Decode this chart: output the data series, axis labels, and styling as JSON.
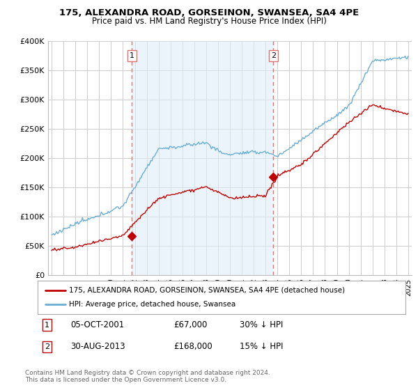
{
  "title": "175, ALEXANDRA ROAD, GORSEINON, SWANSEA, SA4 4PE",
  "subtitle": "Price paid vs. HM Land Registry's House Price Index (HPI)",
  "hpi_color": "#6aaed6",
  "hpi_fill_color": "#ddeeff",
  "property_color": "#c00000",
  "vline_color": "#e07070",
  "marker_color": "#c00000",
  "background_color": "#ffffff",
  "grid_color": "#cccccc",
  "ylim": [
    0,
    400000
  ],
  "yticks": [
    0,
    50000,
    100000,
    150000,
    200000,
    250000,
    300000,
    350000,
    400000
  ],
  "ytick_labels": [
    "£0",
    "£50K",
    "£100K",
    "£150K",
    "£200K",
    "£250K",
    "£300K",
    "£350K",
    "£400K"
  ],
  "sale1_date_num": 2001.76,
  "sale1_price": 67000,
  "sale2_date_num": 2013.66,
  "sale2_price": 168000,
  "legend_property": "175, ALEXANDRA ROAD, GORSEINON, SWANSEA, SA4 4PE (detached house)",
  "legend_hpi": "HPI: Average price, detached house, Swansea",
  "footnote": "Contains HM Land Registry data © Crown copyright and database right 2024.\nThis data is licensed under the Open Government Licence v3.0.",
  "xmin": 1994.7,
  "xmax": 2025.3
}
